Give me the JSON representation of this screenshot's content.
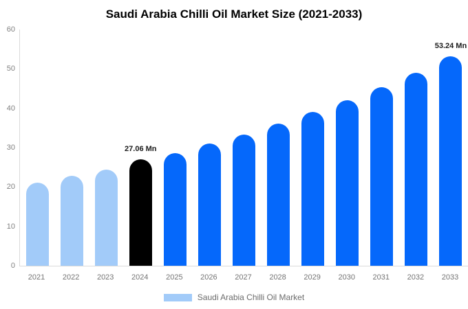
{
  "legend": {
    "label": "Saudi Arabia Chilli Oil Market",
    "swatch_color": "#A2CBF9"
  },
  "colors": {
    "historical_bar": "#A2CBF9",
    "base_year_bar": "#000000",
    "forecast_bar": "#0568FB",
    "axis_line": "#D9D9D9",
    "tick_text": "#808080",
    "value_label_text": "#1A1A1A"
  },
  "chart_data": {
    "type": "bar",
    "title": "Saudi Arabia Chilli Oil Market Size (2021-2033)",
    "xlabel": "",
    "ylabel": "",
    "categories": [
      "2021",
      "2022",
      "2023",
      "2024",
      "2025",
      "2026",
      "2027",
      "2028",
      "2029",
      "2030",
      "2031",
      "2032",
      "2033"
    ],
    "values": [
      21.1,
      22.8,
      24.5,
      27.06,
      28.6,
      31.0,
      33.3,
      36.1,
      39.0,
      42.0,
      45.4,
      49.0,
      53.24
    ],
    "point_colors": [
      "#A2CBF9",
      "#A2CBF9",
      "#A2CBF9",
      "#000000",
      "#0568FB",
      "#0568FB",
      "#0568FB",
      "#0568FB",
      "#0568FB",
      "#0568FB",
      "#0568FB",
      "#0568FB",
      "#0568FB"
    ],
    "yticks": [
      0,
      10,
      20,
      30,
      40,
      50,
      60
    ],
    "ylim": [
      0,
      60
    ],
    "grid": false,
    "legend_position": "bottom",
    "unit": "Mn",
    "annotations": [
      {
        "category": "2024",
        "text": "27.06 Mn"
      },
      {
        "category": "2033",
        "text": "53.24 Mn"
      }
    ]
  }
}
